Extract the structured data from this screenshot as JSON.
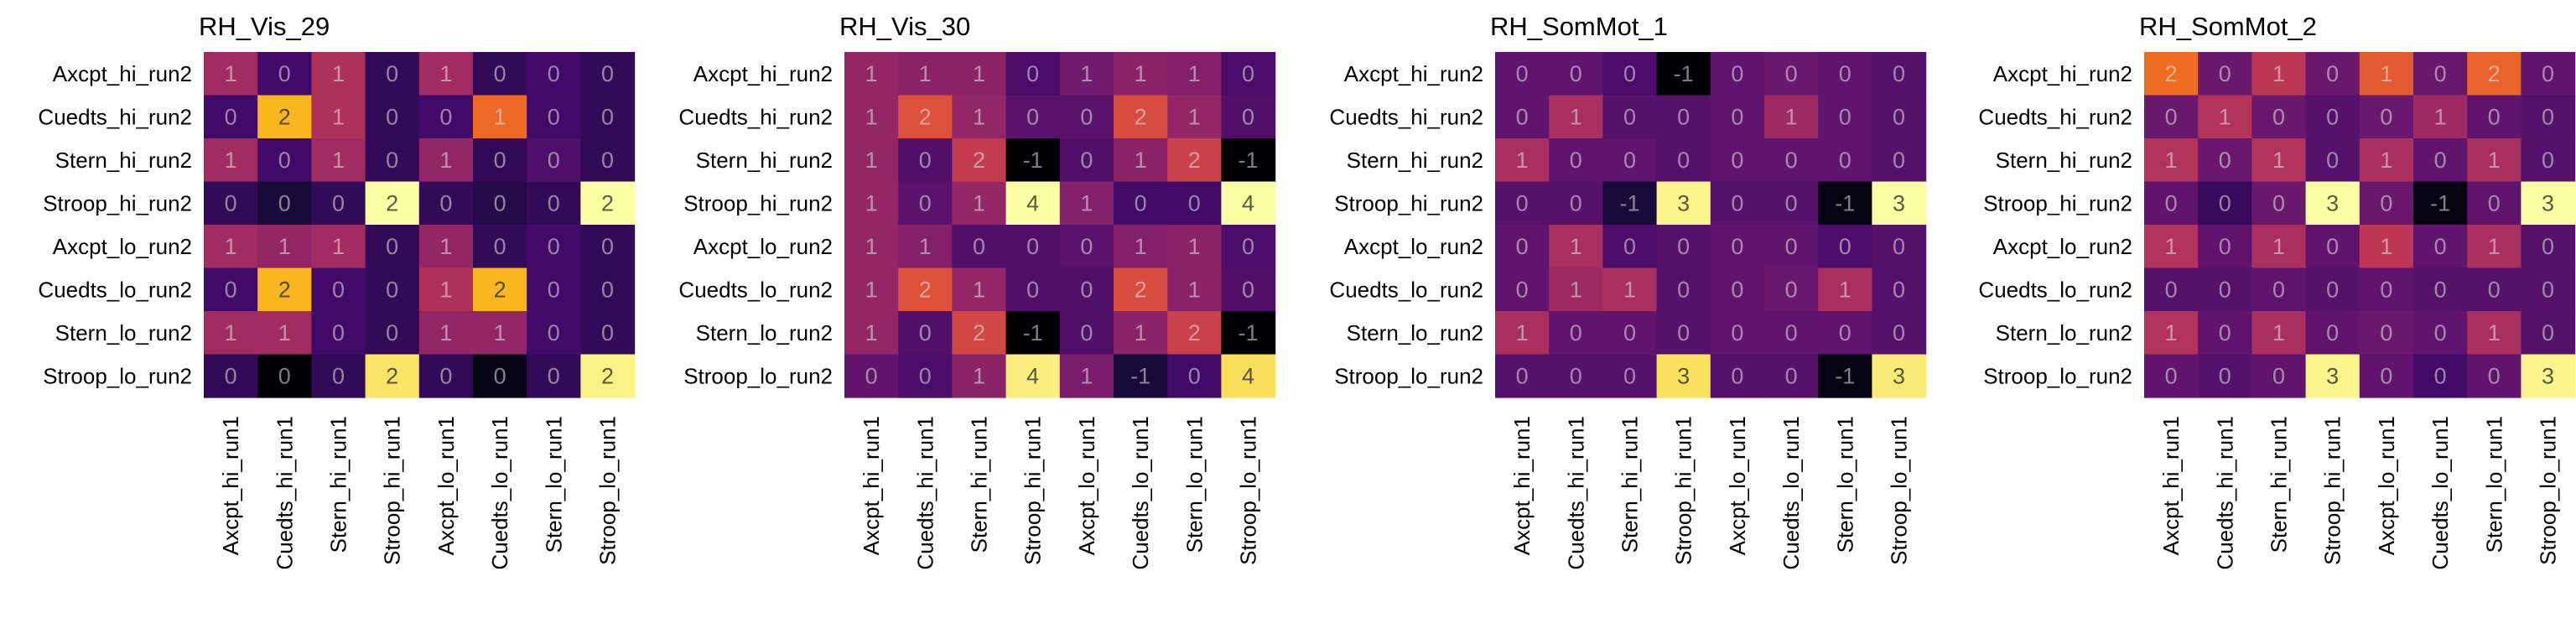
{
  "chart_data": [
    {
      "type": "heatmap",
      "title": "RH_Vis_29",
      "x_categories": [
        "Axcpt_hi_run1",
        "Cuedts_hi_run1",
        "Stern_hi_run1",
        "Stroop_hi_run1",
        "Axcpt_lo_run1",
        "Cuedts_lo_run1",
        "Stern_lo_run1",
        "Stroop_lo_run1"
      ],
      "y_categories": [
        "Axcpt_hi_run2",
        "Cuedts_hi_run2",
        "Stern_hi_run2",
        "Stroop_hi_run2",
        "Axcpt_lo_run2",
        "Cuedts_lo_run2",
        "Stern_lo_run2",
        "Stroop_lo_run2"
      ],
      "values": [
        [
          0.8,
          0.1,
          0.9,
          0.0,
          0.8,
          0.0,
          0.1,
          0.0
        ],
        [
          0.1,
          2.0,
          0.9,
          0.0,
          0.1,
          1.5,
          0.1,
          0.0
        ],
        [
          0.8,
          0.1,
          0.8,
          0.0,
          0.7,
          0.0,
          0.2,
          0.0
        ],
        [
          0.0,
          -0.2,
          0.0,
          2.5,
          0.0,
          -0.1,
          0.0,
          2.5
        ],
        [
          0.8,
          0.7,
          0.8,
          0.0,
          0.7,
          0.0,
          0.1,
          0.0
        ],
        [
          0.1,
          2.0,
          0.1,
          0.0,
          0.9,
          2.0,
          0.1,
          0.0
        ],
        [
          0.8,
          0.8,
          0.1,
          0.0,
          0.7,
          0.7,
          0.1,
          0.0
        ],
        [
          0.0,
          -0.5,
          0.0,
          2.3,
          0.0,
          -0.4,
          0.0,
          2.4
        ]
      ],
      "labels": [
        [
          "1",
          "0",
          "1",
          "0",
          "1",
          "0",
          "0",
          "0"
        ],
        [
          "0",
          "2",
          "1",
          "0",
          "0",
          "1",
          "0",
          "0"
        ],
        [
          "1",
          "0",
          "1",
          "0",
          "1",
          "0",
          "0",
          "0"
        ],
        [
          "0",
          "0",
          "0",
          "2",
          "0",
          "0",
          "0",
          "2"
        ],
        [
          "1",
          "1",
          "1",
          "0",
          "1",
          "0",
          "0",
          "0"
        ],
        [
          "0",
          "2",
          "0",
          "0",
          "1",
          "2",
          "0",
          "0"
        ],
        [
          "1",
          "1",
          "0",
          "0",
          "1",
          "1",
          "0",
          "0"
        ],
        [
          "0",
          "0",
          "0",
          "2",
          "0",
          "0",
          "0",
          "2"
        ]
      ],
      "colormap": "inferno",
      "vmin": -0.5,
      "vmax": 2.5
    },
    {
      "type": "heatmap",
      "title": "RH_Vis_30",
      "x_categories": [
        "Axcpt_hi_run1",
        "Cuedts_hi_run1",
        "Stern_hi_run1",
        "Stroop_hi_run1",
        "Axcpt_lo_run1",
        "Cuedts_lo_run1",
        "Stern_lo_run1",
        "Stroop_lo_run1"
      ],
      "y_categories": [
        "Axcpt_hi_run2",
        "Cuedts_hi_run2",
        "Stern_hi_run2",
        "Stroop_hi_run2",
        "Axcpt_lo_run2",
        "Cuedts_lo_run2",
        "Stern_lo_run2",
        "Stroop_lo_run2"
      ],
      "values": [
        [
          1.0,
          0.9,
          0.9,
          0.1,
          0.6,
          0.9,
          0.8,
          0.1
        ],
        [
          1.0,
          2.0,
          1.0,
          0.3,
          0.3,
          1.9,
          1.0,
          0.2
        ],
        [
          1.0,
          0.2,
          1.6,
          -1.0,
          0.2,
          0.9,
          1.7,
          -1.0
        ],
        [
          1.0,
          0.3,
          1.0,
          4.0,
          0.8,
          0.0,
          0.0,
          4.0
        ],
        [
          1.0,
          0.8,
          0.2,
          0.2,
          0.3,
          0.8,
          0.9,
          0.1
        ],
        [
          1.0,
          2.0,
          1.0,
          0.2,
          0.2,
          1.9,
          0.9,
          0.2
        ],
        [
          1.0,
          0.2,
          1.8,
          -1.0,
          0.2,
          0.9,
          1.7,
          -1.0
        ],
        [
          0.4,
          0.1,
          0.9,
          3.8,
          0.7,
          -0.5,
          0.0,
          3.6
        ]
      ],
      "labels": [
        [
          "1",
          "1",
          "1",
          "0",
          "1",
          "1",
          "1",
          "0"
        ],
        [
          "1",
          "2",
          "1",
          "0",
          "0",
          "2",
          "1",
          "0"
        ],
        [
          "1",
          "0",
          "2",
          "-1",
          "0",
          "1",
          "2",
          "-1"
        ],
        [
          "1",
          "0",
          "1",
          "4",
          "1",
          "0",
          "0",
          "4"
        ],
        [
          "1",
          "1",
          "0",
          "0",
          "0",
          "1",
          "1",
          "0"
        ],
        [
          "1",
          "2",
          "1",
          "0",
          "0",
          "2",
          "1",
          "0"
        ],
        [
          "1",
          "0",
          "2",
          "-1",
          "0",
          "1",
          "2",
          "-1"
        ],
        [
          "0",
          "0",
          "1",
          "4",
          "1",
          "-1",
          "0",
          "4"
        ]
      ],
      "colormap": "inferno",
      "vmin": -1.0,
      "vmax": 4.0
    },
    {
      "type": "heatmap",
      "title": "RH_SomMot_1",
      "x_categories": [
        "Axcpt_hi_run1",
        "Cuedts_hi_run1",
        "Stern_hi_run1",
        "Stroop_hi_run1",
        "Axcpt_lo_run1",
        "Cuedts_lo_run1",
        "Stern_lo_run1",
        "Stroop_lo_run1"
      ],
      "y_categories": [
        "Axcpt_hi_run2",
        "Cuedts_hi_run2",
        "Stern_hi_run2",
        "Stroop_hi_run2",
        "Axcpt_lo_run2",
        "Cuedts_lo_run2",
        "Stern_lo_run2",
        "Stroop_lo_run2"
      ],
      "values": [
        [
          0.1,
          0.1,
          -0.1,
          -1.0,
          0.1,
          0.2,
          0.1,
          0.0
        ],
        [
          0.1,
          0.8,
          0.0,
          0.0,
          0.1,
          0.7,
          0.1,
          0.0
        ],
        [
          0.8,
          0.1,
          0.1,
          0.0,
          0.1,
          0.1,
          0.1,
          0.0
        ],
        [
          0.0,
          0.0,
          -0.6,
          2.9,
          0.0,
          0.0,
          -0.9,
          3.0
        ],
        [
          0.1,
          0.8,
          -0.1,
          0.0,
          0.1,
          0.1,
          -0.1,
          0.0
        ],
        [
          0.1,
          0.7,
          0.8,
          0.0,
          0.1,
          0.2,
          0.8,
          0.0
        ],
        [
          0.8,
          0.1,
          0.1,
          0.0,
          0.1,
          0.1,
          0.1,
          0.0
        ],
        [
          0.0,
          0.0,
          0.0,
          2.7,
          0.0,
          0.0,
          -0.9,
          2.8
        ]
      ],
      "labels": [
        [
          "0",
          "0",
          "0",
          "-1",
          "0",
          "0",
          "0",
          "0"
        ],
        [
          "0",
          "1",
          "0",
          "0",
          "0",
          "1",
          "0",
          "0"
        ],
        [
          "1",
          "0",
          "0",
          "0",
          "0",
          "0",
          "0",
          "0"
        ],
        [
          "0",
          "0",
          "-1",
          "3",
          "0",
          "0",
          "-1",
          "3"
        ],
        [
          "0",
          "1",
          "0",
          "0",
          "0",
          "0",
          "0",
          "0"
        ],
        [
          "0",
          "1",
          "1",
          "0",
          "0",
          "0",
          "1",
          "0"
        ],
        [
          "1",
          "0",
          "0",
          "0",
          "0",
          "0",
          "0",
          "0"
        ],
        [
          "0",
          "0",
          "0",
          "3",
          "0",
          "0",
          "-1",
          "3"
        ]
      ],
      "colormap": "inferno",
      "vmin": -1.0,
      "vmax": 3.0
    },
    {
      "type": "heatmap",
      "title": "RH_SomMot_2",
      "x_categories": [
        "Axcpt_hi_run1",
        "Cuedts_hi_run1",
        "Stern_hi_run1",
        "Stroop_hi_run1",
        "Axcpt_lo_run1",
        "Cuedts_lo_run1",
        "Stern_lo_run1",
        "Stroop_lo_run1"
      ],
      "y_categories": [
        "Axcpt_hi_run2",
        "Cuedts_hi_run2",
        "Stern_hi_run2",
        "Stroop_hi_run2",
        "Axcpt_lo_run2",
        "Cuedts_lo_run2",
        "Stern_lo_run2",
        "Stroop_lo_run2"
      ],
      "values": [
        [
          1.7,
          0.2,
          1.0,
          0.2,
          1.5,
          0.2,
          1.6,
          0.1
        ],
        [
          0.2,
          0.9,
          0.2,
          0.0,
          0.2,
          0.7,
          0.1,
          0.0
        ],
        [
          0.9,
          0.2,
          0.9,
          0.0,
          0.8,
          0.1,
          0.8,
          0.0
        ],
        [
          0.1,
          -0.3,
          0.2,
          3.0,
          0.2,
          -0.9,
          0.1,
          3.0
        ],
        [
          0.9,
          0.1,
          0.8,
          0.1,
          1.0,
          0.1,
          0.8,
          0.0
        ],
        [
          0.0,
          0.0,
          0.1,
          0.0,
          0.1,
          0.0,
          0.0,
          0.0
        ],
        [
          0.9,
          0.1,
          0.8,
          0.1,
          0.2,
          0.1,
          0.8,
          0.0
        ],
        [
          0.1,
          0.0,
          0.1,
          2.9,
          0.1,
          -0.2,
          0.1,
          2.9
        ]
      ],
      "labels": [
        [
          "2",
          "0",
          "1",
          "0",
          "1",
          "0",
          "2",
          "0"
        ],
        [
          "0",
          "1",
          "0",
          "0",
          "0",
          "1",
          "0",
          "0"
        ],
        [
          "1",
          "0",
          "1",
          "0",
          "1",
          "0",
          "1",
          "0"
        ],
        [
          "0",
          "0",
          "0",
          "3",
          "0",
          "-1",
          "0",
          "3"
        ],
        [
          "1",
          "0",
          "1",
          "0",
          "1",
          "0",
          "1",
          "0"
        ],
        [
          "0",
          "0",
          "0",
          "0",
          "0",
          "0",
          "0",
          "0"
        ],
        [
          "1",
          "0",
          "1",
          "0",
          "0",
          "0",
          "1",
          "0"
        ],
        [
          "0",
          "0",
          "0",
          "3",
          "0",
          "0",
          "0",
          "3"
        ]
      ],
      "colormap": "inferno",
      "vmin": -1.0,
      "vmax": 3.0
    }
  ]
}
